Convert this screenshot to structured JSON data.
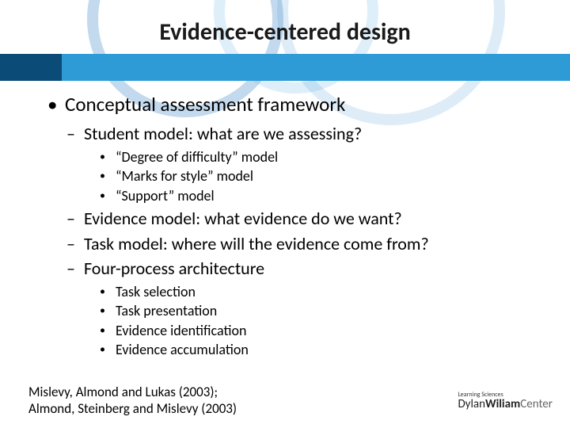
{
  "title": "Evidence-centered design",
  "colors": {
    "bar": "#2e9bd6",
    "bar_accent": "#0b4b78",
    "background": "#ffffff",
    "text": "#000000"
  },
  "bullets": {
    "l1": "Conceptual assessment framework",
    "student_model": "Student model: what are we assessing?",
    "student_sub": [
      "“Degree of difficulty” model",
      "“Marks for style” model",
      "“Support” model"
    ],
    "evidence_model": "Evidence model: what evidence do we want?",
    "task_model": "Task model: where will the evidence come from?",
    "four_process": "Four-process architecture",
    "four_sub": [
      "Task selection",
      "Task presentation",
      "Evidence identification",
      "Evidence accumulation"
    ]
  },
  "references": {
    "line1": "Mislevy, Almond and Lukas (2003);",
    "line2": "Almond, Steinberg and Mislevy (2003)"
  },
  "logo": {
    "tagline": "Learning Sciences",
    "dylan": "Dylan",
    "wiliam": "Wiliam",
    "center": "Center"
  }
}
